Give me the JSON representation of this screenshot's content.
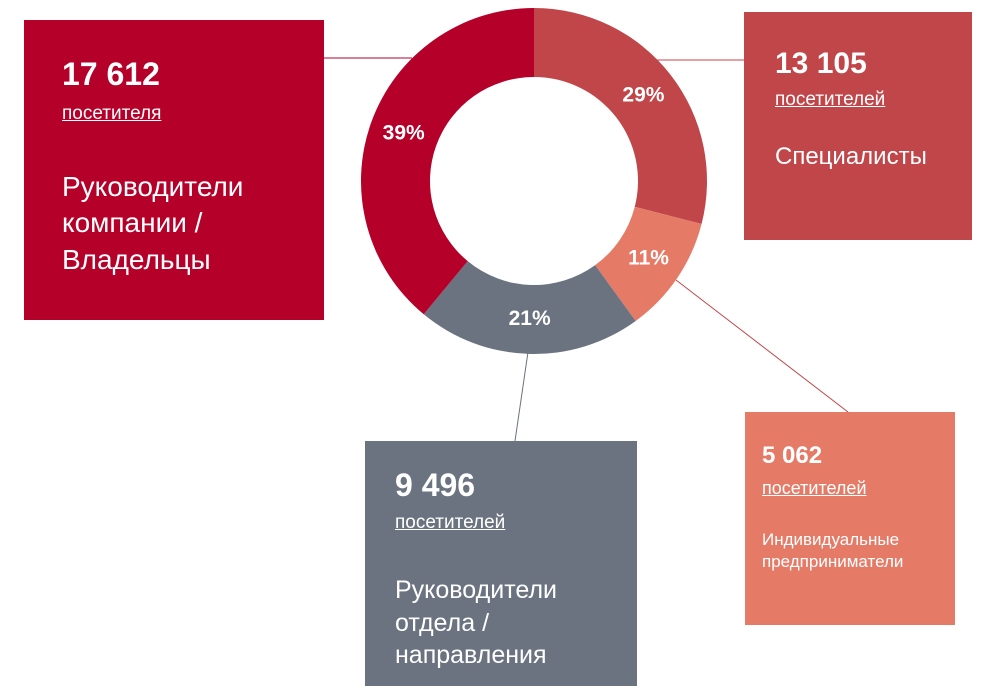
{
  "chart_data": {
    "type": "donut",
    "categories": [
      "Специалисты",
      "Индивидуальные предприниматели",
      "Руководители отдела / направления",
      "Руководители компании / Владельцы"
    ],
    "values": [
      29,
      11,
      21,
      39
    ],
    "value_labels": [
      "29%",
      "11%",
      "21%",
      "39%"
    ],
    "colors": [
      "#c0464a",
      "#e57b67",
      "#6b7380",
      "#b5002a"
    ],
    "counts": [
      "13 105",
      "5 062",
      "9 496",
      "17 612"
    ],
    "count_units": [
      "посетителей",
      "посетителей",
      "посетителей",
      "посетителя"
    ]
  }
}
